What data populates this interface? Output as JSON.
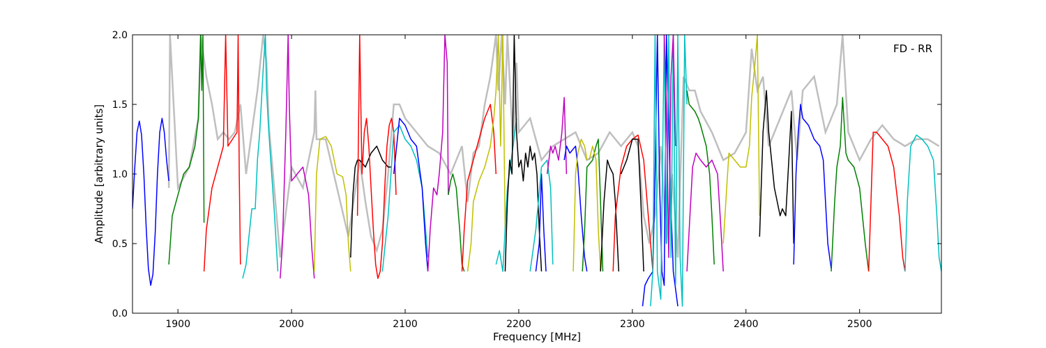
{
  "chart_data": {
    "type": "line",
    "title": "",
    "annotation": "FD - RR",
    "xlabel": "Frequency [MHz]",
    "ylabel": "Amplitude [arbitrary units]",
    "xlim": [
      1860,
      2572
    ],
    "ylim": [
      0.0,
      2.0
    ],
    "xticks": [
      1900,
      2000,
      2100,
      2200,
      2300,
      2400,
      2500
    ],
    "yticks": [
      0.0,
      0.5,
      1.0,
      1.5,
      2.0
    ],
    "xtick_labels": [
      "1900",
      "2000",
      "2100",
      "2200",
      "2300",
      "2400",
      "2500"
    ],
    "ytick_labels": [
      "0.0",
      "0.5",
      "1.0",
      "1.5",
      "2.0"
    ],
    "grid": false,
    "background_series": {
      "color": "#bfbfbf",
      "x": [
        1892,
        1893,
        1900,
        1910,
        1918,
        1920,
        1925,
        1930,
        1935,
        1940,
        1945,
        1950,
        1955,
        1960,
        1970,
        1975,
        1978,
        1980,
        1990,
        2000,
        2010,
        2020,
        2021,
        2022,
        2030,
        2040,
        2050,
        2060,
        2065,
        2070,
        2075,
        2080,
        2085,
        2090,
        2095,
        2100,
        2110,
        2120,
        2130,
        2140,
        2150,
        2155,
        2160,
        2165,
        2170,
        2175,
        2180,
        2182,
        2185,
        2188,
        2190,
        2195,
        2198,
        2200,
        2210,
        2220,
        2230,
        2240,
        2250,
        2260,
        2270,
        2280,
        2290,
        2300,
        2305,
        2310,
        2315,
        2320,
        2325,
        2330,
        2335,
        2340,
        2345,
        2350,
        2355,
        2360,
        2370,
        2380,
        2390,
        2400,
        2405,
        2410,
        2415,
        2420,
        2430,
        2440,
        2445,
        2450,
        2460,
        2470,
        2480,
        2485,
        2490,
        2500,
        2510,
        2520,
        2530,
        2540,
        2550,
        2560,
        2570
      ],
      "y": [
        0.9,
        2.0,
        0.9,
        1.05,
        1.4,
        2.0,
        1.7,
        1.5,
        1.25,
        1.3,
        1.25,
        1.3,
        1.5,
        1.0,
        1.6,
        2.0,
        1.8,
        1.35,
        0.4,
        1.05,
        0.9,
        1.3,
        1.6,
        1.25,
        1.25,
        0.9,
        0.55,
        1.1,
        0.8,
        0.55,
        0.45,
        0.6,
        1.0,
        1.5,
        1.5,
        1.4,
        1.3,
        1.2,
        1.15,
        1.0,
        1.2,
        0.8,
        1.15,
        1.2,
        1.5,
        1.7,
        2.0,
        1.6,
        2.0,
        1.5,
        2.0,
        1.2,
        1.8,
        1.3,
        1.4,
        1.1,
        1.2,
        1.25,
        1.3,
        1.1,
        1.15,
        1.3,
        1.2,
        1.3,
        1.2,
        0.7,
        0.5,
        0.7,
        1.2,
        0.5,
        1.0,
        0.4,
        1.7,
        1.6,
        1.6,
        1.45,
        1.3,
        1.1,
        1.15,
        1.3,
        1.9,
        1.6,
        1.7,
        1.2,
        1.4,
        1.6,
        1.1,
        1.6,
        1.7,
        1.3,
        1.5,
        2.0,
        1.3,
        1.1,
        1.25,
        1.35,
        1.25,
        1.2,
        1.25,
        1.25,
        1.2
      ]
    },
    "series": [
      {
        "color": "#0000ff",
        "x": [
          1860,
          1862,
          1864,
          1866,
          1868,
          1870,
          1872,
          1874,
          1876,
          1878,
          1880,
          1882,
          1884,
          1886,
          1888,
          1890,
          1892
        ],
        "y": [
          0.75,
          1.05,
          1.3,
          1.38,
          1.28,
          1.0,
          0.62,
          0.32,
          0.2,
          0.28,
          0.58,
          1.0,
          1.3,
          1.4,
          1.3,
          1.1,
          0.95
        ]
      },
      {
        "color": "#008000",
        "x": [
          1892,
          1895,
          1900,
          1905,
          1910,
          1915,
          1918,
          1920,
          1921,
          1922,
          1923
        ],
        "y": [
          0.35,
          0.7,
          0.85,
          1.0,
          1.05,
          1.2,
          1.4,
          2.0,
          1.6,
          2.0,
          0.65
        ]
      },
      {
        "color": "#ff0000",
        "x": [
          1923,
          1925,
          1930,
          1935,
          1940,
          1942,
          1944,
          1948,
          1952,
          1953,
          1954,
          1955
        ],
        "y": [
          0.3,
          0.6,
          0.9,
          1.05,
          1.2,
          2.0,
          1.2,
          1.25,
          1.3,
          2.0,
          1.0,
          0.35
        ]
      },
      {
        "color": "#00bfbf",
        "x": [
          1957,
          1960,
          1965,
          1968,
          1970,
          1972,
          1975,
          1977,
          1978,
          1980,
          1985,
          1988
        ],
        "y": [
          0.25,
          0.35,
          0.75,
          0.75,
          1.1,
          1.3,
          1.75,
          2.0,
          1.6,
          1.3,
          0.7,
          0.3
        ]
      },
      {
        "color": "#bf00bf",
        "x": [
          1990,
          1992,
          1995,
          1997,
          1998,
          2000,
          2005,
          2010,
          2015,
          2018,
          2020
        ],
        "y": [
          0.25,
          0.5,
          1.3,
          2.0,
          1.5,
          0.95,
          1.0,
          1.05,
          0.85,
          0.45,
          0.25
        ]
      },
      {
        "color": "#bfbf00",
        "x": [
          2020,
          2022,
          2025,
          2030,
          2035,
          2040,
          2045,
          2048,
          2050,
          2052
        ],
        "y": [
          0.3,
          1.0,
          1.25,
          1.27,
          1.2,
          1.0,
          0.98,
          0.85,
          0.5,
          0.3
        ]
      },
      {
        "color": "#000000",
        "x": [
          2052,
          2054,
          2056,
          2058,
          2060,
          2065,
          2070,
          2075,
          2080,
          2085,
          2088
        ],
        "y": [
          0.4,
          0.85,
          1.05,
          1.1,
          1.1,
          1.05,
          1.15,
          1.2,
          1.1,
          1.05,
          1.05
        ]
      },
      {
        "color": "#ff0000",
        "x": [
          2058,
          2060,
          2062,
          2064,
          2066,
          2068,
          2070,
          2072,
          2074,
          2076,
          2078,
          2080,
          2082,
          2084,
          2086,
          2088,
          2090,
          2092
        ],
        "y": [
          0.7,
          2.0,
          1.0,
          1.3,
          1.4,
          1.2,
          0.9,
          0.6,
          0.35,
          0.25,
          0.3,
          0.5,
          0.9,
          1.2,
          1.35,
          1.4,
          1.3,
          0.85
        ]
      },
      {
        "color": "#00bfbf",
        "x": [
          2080,
          2085,
          2090,
          2095,
          2100,
          2105,
          2110,
          2115,
          2120
        ],
        "y": [
          0.3,
          0.7,
          1.3,
          1.35,
          1.25,
          1.2,
          1.1,
          0.9,
          0.4
        ]
      },
      {
        "color": "#0000ff",
        "x": [
          2090,
          2095,
          2100,
          2105,
          2110,
          2115,
          2118,
          2120
        ],
        "y": [
          1.0,
          1.4,
          1.35,
          1.25,
          1.2,
          0.9,
          0.5,
          0.3
        ]
      },
      {
        "color": "#bf00bf",
        "x": [
          2120,
          2122,
          2125,
          2128,
          2130,
          2133,
          2135,
          2137,
          2138
        ],
        "y": [
          0.3,
          0.6,
          0.9,
          0.85,
          1.0,
          1.3,
          2.0,
          1.8,
          0.85
        ]
      },
      {
        "color": "#008000",
        "x": [
          2138,
          2140,
          2142,
          2145,
          2148,
          2150,
          2152
        ],
        "y": [
          0.85,
          0.95,
          1.0,
          0.9,
          0.6,
          0.35,
          0.3
        ]
      },
      {
        "color": "#ff0000",
        "x": [
          2150,
          2152,
          2155,
          2160,
          2165,
          2170,
          2175,
          2178,
          2180
        ],
        "y": [
          0.3,
          0.6,
          0.95,
          1.1,
          1.25,
          1.4,
          1.5,
          1.3,
          1.0
        ]
      },
      {
        "color": "#bfbf00",
        "x": [
          2155,
          2158,
          2160,
          2165,
          2170,
          2175,
          2178,
          2180,
          2182,
          2184,
          2186,
          2188
        ],
        "y": [
          0.3,
          0.5,
          0.8,
          0.95,
          1.05,
          1.2,
          1.4,
          1.6,
          2.0,
          1.2,
          2.0,
          0.6
        ]
      },
      {
        "color": "#00bfbf",
        "x": [
          2180,
          2183,
          2186,
          2190,
          2195,
          2198
        ],
        "y": [
          0.35,
          0.45,
          0.3,
          0.9,
          1.2,
          1.4
        ]
      },
      {
        "color": "#000000",
        "x": [
          2188,
          2190,
          2192,
          2194,
          2196,
          2198,
          2200,
          2202,
          2204,
          2206,
          2208,
          2210,
          2212,
          2214,
          2216,
          2218,
          2220
        ],
        "y": [
          0.3,
          0.8,
          1.1,
          1.0,
          2.0,
          1.3,
          1.05,
          1.1,
          0.95,
          1.15,
          1.05,
          1.2,
          1.1,
          1.15,
          1.0,
          0.6,
          0.3
        ]
      },
      {
        "color": "#0000ff",
        "x": [
          2215,
          2218,
          2220,
          2222,
          2224
        ],
        "y": [
          0.3,
          0.5,
          1.0,
          0.6,
          0.3
        ]
      },
      {
        "color": "#00bfbf",
        "x": [
          2210,
          2215,
          2220,
          2225,
          2228,
          2230
        ],
        "y": [
          0.3,
          0.6,
          1.05,
          1.1,
          0.9,
          0.35
        ]
      },
      {
        "color": "#bf00bf",
        "x": [
          2225,
          2228,
          2230,
          2232,
          2235,
          2238,
          2240,
          2242
        ],
        "y": [
          1.0,
          1.2,
          1.15,
          1.2,
          1.1,
          1.3,
          1.55,
          1.0
        ]
      },
      {
        "color": "#0000ff",
        "x": [
          2240,
          2242,
          2245,
          2250,
          2252,
          2255,
          2258,
          2260
        ],
        "y": [
          1.1,
          1.2,
          1.15,
          1.2,
          1.05,
          0.7,
          0.4,
          0.3
        ]
      },
      {
        "color": "#bfbf00",
        "x": [
          2248,
          2250,
          2252,
          2255,
          2258,
          2260
        ],
        "y": [
          0.3,
          1.0,
          1.15,
          1.25,
          1.2,
          1.1
        ]
      },
      {
        "color": "#008000",
        "x": [
          2256,
          2258,
          2260,
          2265,
          2268,
          2270,
          2272,
          2274
        ],
        "y": [
          0.3,
          0.6,
          1.05,
          1.1,
          1.2,
          1.25,
          0.8,
          0.3
        ]
      },
      {
        "color": "#bfbf00",
        "x": [
          2262,
          2265,
          2268,
          2270,
          2272
        ],
        "y": [
          1.1,
          1.2,
          1.1,
          0.6,
          0.3
        ]
      },
      {
        "color": "#000000",
        "x": [
          2272,
          2275,
          2278,
          2280,
          2283,
          2285,
          2288
        ],
        "y": [
          0.3,
          0.8,
          1.1,
          1.05,
          1.0,
          0.8,
          0.3
        ]
      },
      {
        "color": "#ff0000",
        "x": [
          2283,
          2285,
          2290,
          2295,
          2300,
          2305,
          2310,
          2315,
          2318
        ],
        "y": [
          0.3,
          0.7,
          1.05,
          1.2,
          1.25,
          1.28,
          1.1,
          0.6,
          0.3
        ]
      },
      {
        "color": "#000000",
        "x": [
          2290,
          2295,
          2300,
          2305,
          2308,
          2310
        ],
        "y": [
          1.0,
          1.1,
          1.25,
          1.25,
          0.7,
          0.3
        ]
      },
      {
        "color": "#0000ff",
        "x": [
          2309,
          2311,
          2314,
          2318,
          2320,
          2322,
          2324,
          2326,
          2328,
          2330,
          2333,
          2336,
          2340
        ],
        "y": [
          0.05,
          0.2,
          0.25,
          0.3,
          1.0,
          2.0,
          0.9,
          0.3,
          0.2,
          2.0,
          1.0,
          0.3,
          0.05
        ]
      },
      {
        "color": "#00bfbf",
        "x": [
          2316,
          2318,
          2320,
          2322,
          2325,
          2328,
          2330,
          2332,
          2334,
          2336,
          2338,
          2340,
          2342,
          2344,
          2346,
          2348
        ],
        "y": [
          0.05,
          0.3,
          2.0,
          0.3,
          0.1,
          2.0,
          0.5,
          2.0,
          0.4,
          2.0,
          0.2,
          2.0,
          0.4,
          0.05,
          2.0,
          1.5
        ]
      },
      {
        "color": "#bf00bf",
        "x": [
          2328,
          2330,
          2332,
          2334,
          2336,
          2338
        ],
        "y": [
          2.0,
          1.5,
          0.4,
          1.7,
          2.0,
          1.2
        ]
      },
      {
        "color": "#008000",
        "x": [
          2348,
          2350,
          2355,
          2358,
          2360,
          2365,
          2368,
          2370,
          2372
        ],
        "y": [
          1.6,
          1.5,
          1.45,
          1.4,
          1.35,
          1.2,
          1.0,
          0.7,
          0.35
        ]
      },
      {
        "color": "#bf00bf",
        "x": [
          2348,
          2350,
          2353,
          2356,
          2360,
          2365,
          2370,
          2375,
          2378,
          2380
        ],
        "y": [
          0.3,
          0.6,
          1.05,
          1.15,
          1.1,
          1.05,
          1.1,
          1.0,
          0.6,
          0.3
        ]
      },
      {
        "color": "#bfbf00",
        "x": [
          2380,
          2383,
          2385,
          2390,
          2395,
          2400,
          2403,
          2405,
          2408,
          2410,
          2412
        ],
        "y": [
          0.5,
          0.9,
          1.15,
          1.1,
          1.05,
          1.05,
          1.2,
          1.55,
          1.8,
          2.0,
          0.7
        ]
      },
      {
        "color": "#000000",
        "x": [
          2412,
          2415,
          2418,
          2420,
          2425,
          2430,
          2432,
          2435,
          2437,
          2440,
          2442
        ],
        "y": [
          0.55,
          1.3,
          1.6,
          1.3,
          0.9,
          0.7,
          0.75,
          0.7,
          1.0,
          1.45,
          0.5
        ]
      },
      {
        "color": "#0000ff",
        "x": [
          2442,
          2444,
          2446,
          2448,
          2450,
          2455,
          2460,
          2465,
          2468,
          2470,
          2472,
          2475
        ],
        "y": [
          0.35,
          1.0,
          1.3,
          1.5,
          1.4,
          1.35,
          1.25,
          1.2,
          1.1,
          0.8,
          0.5,
          0.32
        ]
      },
      {
        "color": "#008000",
        "x": [
          2475,
          2478,
          2480,
          2483,
          2485,
          2488,
          2490,
          2495,
          2500,
          2505,
          2508
        ],
        "y": [
          0.3,
          0.8,
          1.05,
          1.2,
          1.55,
          1.15,
          1.1,
          1.05,
          0.9,
          0.5,
          0.3
        ]
      },
      {
        "color": "#ff0000",
        "x": [
          2508,
          2510,
          2512,
          2515,
          2520,
          2525,
          2530,
          2535,
          2538,
          2540
        ],
        "y": [
          0.3,
          0.8,
          1.3,
          1.3,
          1.25,
          1.2,
          1.05,
          0.7,
          0.4,
          0.3
        ]
      },
      {
        "color": "#00bfbf",
        "x": [
          2540,
          2542,
          2545,
          2550,
          2555,
          2560,
          2565,
          2568,
          2570,
          2572
        ],
        "y": [
          0.3,
          0.8,
          1.2,
          1.28,
          1.25,
          1.2,
          1.1,
          0.7,
          0.4,
          0.3
        ]
      }
    ]
  }
}
